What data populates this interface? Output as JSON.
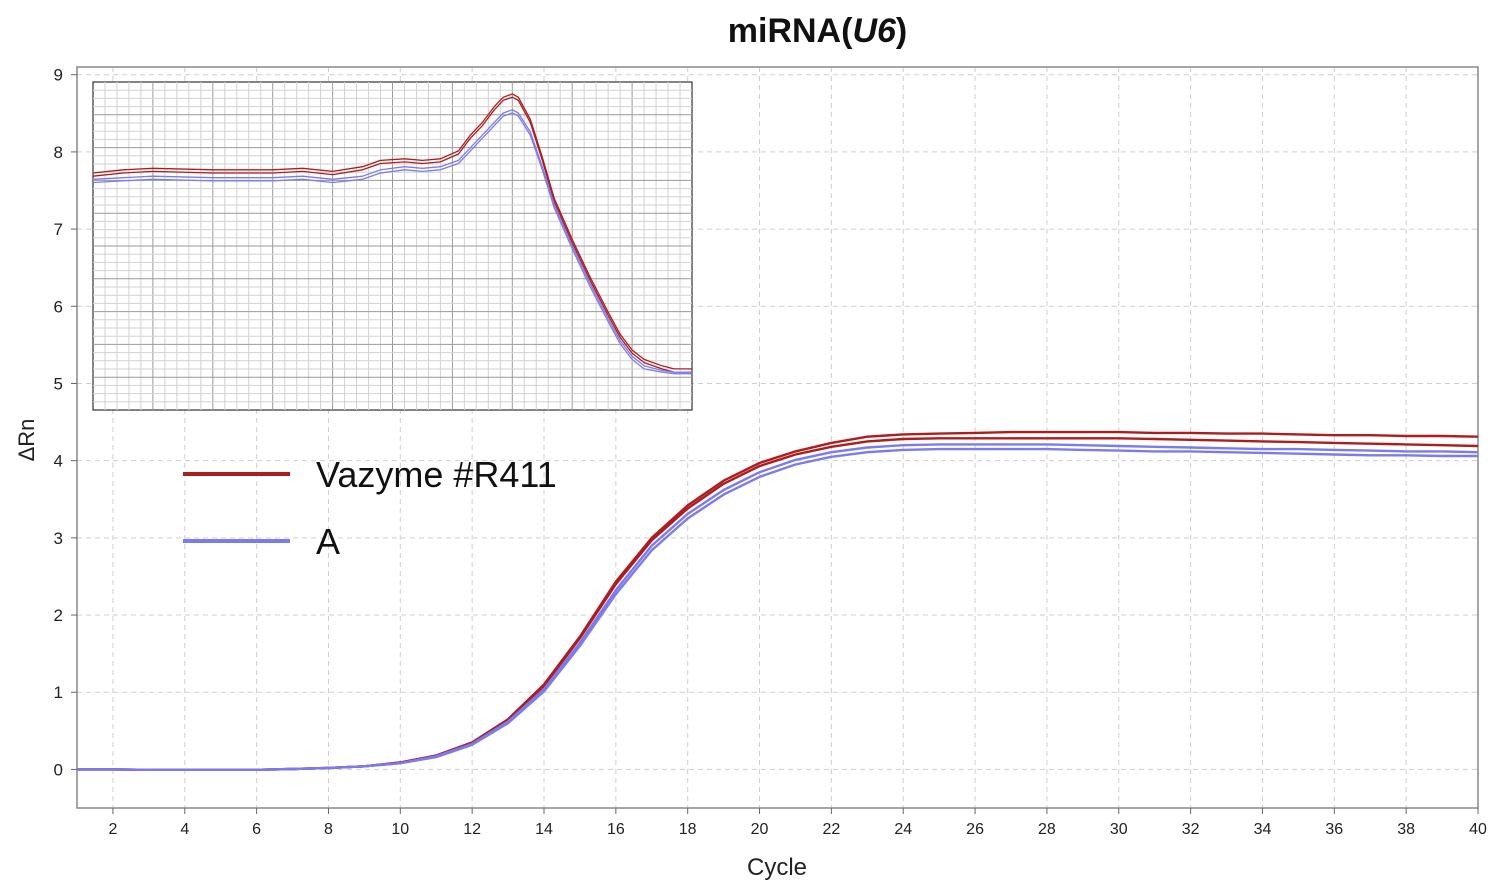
{
  "chart_data": {
    "type": "line",
    "title_prefix": "miRNA(",
    "title_gene": "U6",
    "title_suffix": ")",
    "xlabel": "Cycle",
    "ylabel": "ΔRn",
    "xlim": [
      1,
      40
    ],
    "ylim": [
      -0.5,
      9.1
    ],
    "x_ticks": [
      "2",
      "4",
      "6",
      "8",
      "10",
      "12",
      "14",
      "16",
      "18",
      "20",
      "22",
      "24",
      "26",
      "28",
      "30",
      "32",
      "34",
      "36",
      "38",
      "40"
    ],
    "y_ticks": [
      "0",
      "1",
      "2",
      "3",
      "4",
      "5",
      "6",
      "7",
      "8",
      "9"
    ],
    "grid": true,
    "legend_placement": "left-middle",
    "legend": [
      {
        "label": "Vazyme #R411",
        "color": "#b01c1c"
      },
      {
        "label": "A",
        "color": "#7b7bf0"
      }
    ],
    "x": [
      1,
      2,
      3,
      4,
      5,
      6,
      7,
      8,
      9,
      10,
      11,
      12,
      13,
      14,
      15,
      16,
      17,
      18,
      19,
      20,
      21,
      22,
      23,
      24,
      25,
      26,
      27,
      28,
      29,
      30,
      31,
      32,
      33,
      34,
      35,
      36,
      37,
      38,
      39,
      40
    ],
    "series": [
      {
        "group": "Vazyme #R411",
        "color": "#b01c1c",
        "values": [
          0,
          0,
          -0.005,
          -0.005,
          -0.005,
          -0.005,
          0.005,
          0.02,
          0.04,
          0.09,
          0.18,
          0.35,
          0.65,
          1.1,
          1.72,
          2.43,
          3.0,
          3.42,
          3.74,
          3.97,
          4.12,
          4.23,
          4.31,
          4.34,
          4.35,
          4.36,
          4.37,
          4.37,
          4.37,
          4.37,
          4.36,
          4.36,
          4.35,
          4.35,
          4.34,
          4.33,
          4.33,
          4.32,
          4.32,
          4.31
        ]
      },
      {
        "group": "Vazyme #R411",
        "color": "#b01c1c",
        "values": [
          0,
          0,
          -0.005,
          -0.005,
          -0.005,
          -0.005,
          0.005,
          0.02,
          0.04,
          0.09,
          0.18,
          0.34,
          0.64,
          1.08,
          1.7,
          2.4,
          2.97,
          3.38,
          3.7,
          3.93,
          4.08,
          4.18,
          4.25,
          4.28,
          4.29,
          4.29,
          4.29,
          4.29,
          4.29,
          4.29,
          4.28,
          4.27,
          4.26,
          4.25,
          4.24,
          4.23,
          4.22,
          4.21,
          4.2,
          4.19
        ]
      },
      {
        "group": "A",
        "color": "#7b7bf0",
        "values": [
          0,
          0,
          -0.005,
          -0.005,
          -0.005,
          -0.005,
          0.005,
          0.02,
          0.04,
          0.08,
          0.17,
          0.33,
          0.62,
          1.04,
          1.64,
          2.32,
          2.9,
          3.31,
          3.62,
          3.85,
          4.01,
          4.11,
          4.17,
          4.2,
          4.21,
          4.21,
          4.21,
          4.21,
          4.2,
          4.19,
          4.18,
          4.17,
          4.16,
          4.15,
          4.15,
          4.14,
          4.13,
          4.12,
          4.12,
          4.11
        ]
      },
      {
        "group": "A",
        "color": "#7b7bf0",
        "values": [
          0,
          0,
          -0.005,
          -0.005,
          -0.005,
          -0.005,
          0.005,
          0.02,
          0.04,
          0.08,
          0.16,
          0.32,
          0.6,
          1.01,
          1.6,
          2.27,
          2.84,
          3.25,
          3.56,
          3.79,
          3.95,
          4.05,
          4.11,
          4.14,
          4.15,
          4.15,
          4.15,
          4.15,
          4.14,
          4.13,
          4.12,
          4.12,
          4.11,
          4.1,
          4.09,
          4.08,
          4.07,
          4.07,
          4.06,
          4.06
        ]
      }
    ],
    "inset": {
      "type": "line",
      "description": "melt curve",
      "x_range": [
        0,
        100
      ],
      "y_range": [
        0,
        100
      ],
      "series": [
        {
          "color": "#b01c1c",
          "points": [
            [
              0,
              75
            ],
            [
              5,
              76
            ],
            [
              10,
              76.5
            ],
            [
              20,
              76
            ],
            [
              30,
              76
            ],
            [
              35,
              76.5
            ],
            [
              40,
              75.5
            ],
            [
              45,
              77
            ],
            [
              48,
              79
            ],
            [
              52,
              79.5
            ],
            [
              55,
              79
            ],
            [
              58,
              79.5
            ],
            [
              61,
              82
            ],
            [
              63,
              87
            ],
            [
              65,
              91
            ],
            [
              67,
              96
            ],
            [
              68.5,
              99
            ],
            [
              70,
              100
            ],
            [
              71,
              99
            ],
            [
              73,
              92
            ],
            [
              75,
              80
            ],
            [
              77,
              67
            ],
            [
              80,
              54
            ],
            [
              83,
              42
            ],
            [
              86,
              31
            ],
            [
              88,
              24
            ],
            [
              90,
              19
            ],
            [
              92,
              16
            ],
            [
              95,
              14
            ],
            [
              97,
              13
            ],
            [
              100,
              13
            ]
          ]
        },
        {
          "color": "#b01c1c",
          "points": [
            [
              0,
              74
            ],
            [
              5,
              75
            ],
            [
              10,
              75.5
            ],
            [
              20,
              75
            ],
            [
              30,
              75
            ],
            [
              35,
              75.5
            ],
            [
              40,
              74.5
            ],
            [
              45,
              76
            ],
            [
              48,
              78
            ],
            [
              52,
              78.5
            ],
            [
              55,
              78
            ],
            [
              58,
              78.5
            ],
            [
              61,
              81
            ],
            [
              63,
              86
            ],
            [
              65,
              90
            ],
            [
              67,
              95
            ],
            [
              68.5,
              98
            ],
            [
              70,
              99
            ],
            [
              71,
              98
            ],
            [
              73,
              91
            ],
            [
              75,
              79
            ],
            [
              77,
              66
            ],
            [
              80,
              53
            ],
            [
              83,
              41
            ],
            [
              86,
              30
            ],
            [
              88,
              23
            ],
            [
              90,
              18
            ],
            [
              92,
              15
            ],
            [
              95,
              13
            ],
            [
              97,
              12
            ],
            [
              100,
              12
            ]
          ]
        },
        {
          "color": "#7b7bf0",
          "points": [
            [
              0,
              73
            ],
            [
              5,
              73.5
            ],
            [
              10,
              74
            ],
            [
              20,
              73.5
            ],
            [
              30,
              73.5
            ],
            [
              35,
              74
            ],
            [
              40,
              73
            ],
            [
              45,
              74
            ],
            [
              48,
              76
            ],
            [
              52,
              77
            ],
            [
              55,
              76.5
            ],
            [
              58,
              77
            ],
            [
              61,
              79
            ],
            [
              63,
              83
            ],
            [
              65,
              87
            ],
            [
              67,
              91
            ],
            [
              68.5,
              94
            ],
            [
              70,
              95
            ],
            [
              71,
              94
            ],
            [
              73,
              88
            ],
            [
              75,
              77
            ],
            [
              77,
              65
            ],
            [
              80,
              52
            ],
            [
              83,
              40
            ],
            [
              86,
              29
            ],
            [
              88,
              22
            ],
            [
              90,
              17
            ],
            [
              92,
              14
            ],
            [
              95,
              12.5
            ],
            [
              97,
              12
            ],
            [
              100,
              12
            ]
          ]
        },
        {
          "color": "#7b7bf0",
          "points": [
            [
              0,
              72
            ],
            [
              5,
              72.5
            ],
            [
              10,
              73
            ],
            [
              20,
              72.5
            ],
            [
              30,
              72.5
            ],
            [
              35,
              73
            ],
            [
              40,
              72
            ],
            [
              45,
              73
            ],
            [
              48,
              75
            ],
            [
              52,
              76
            ],
            [
              55,
              75.5
            ],
            [
              58,
              76
            ],
            [
              61,
              78
            ],
            [
              63,
              82
            ],
            [
              65,
              86
            ],
            [
              67,
              90
            ],
            [
              68.5,
              93
            ],
            [
              70,
              94
            ],
            [
              71,
              93
            ],
            [
              73,
              87
            ],
            [
              75,
              76
            ],
            [
              77,
              64
            ],
            [
              80,
              51
            ],
            [
              83,
              39
            ],
            [
              86,
              28
            ],
            [
              88,
              21
            ],
            [
              90,
              16
            ],
            [
              92,
              13
            ],
            [
              95,
              12
            ],
            [
              97,
              11.5
            ],
            [
              100,
              11.5
            ]
          ]
        }
      ]
    }
  }
}
